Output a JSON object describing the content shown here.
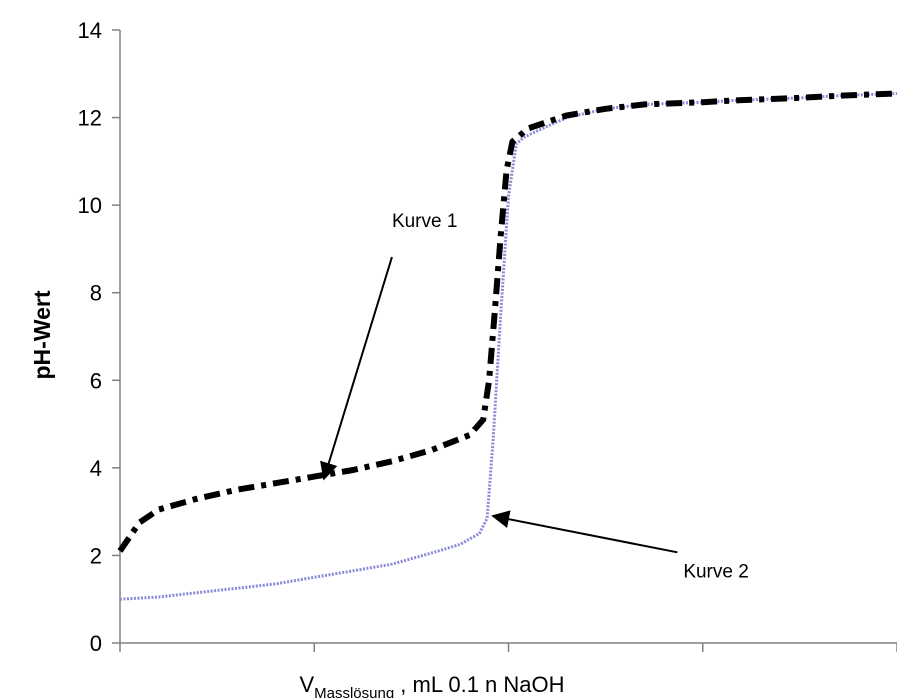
{
  "chart_data": {
    "type": "line",
    "title": "",
    "ylabel": "pH-Wert",
    "xlabel": {
      "main": "V",
      "subscript": "Masslösung",
      "rest": " , mL 0.1 n NaOH"
    },
    "xlim": [
      0,
      4
    ],
    "ylim": [
      0,
      14
    ],
    "y_ticks": [
      "0",
      "2",
      "4",
      "6",
      "8",
      "10",
      "12",
      "14"
    ],
    "x_ticks": [
      0,
      1,
      2,
      3,
      4
    ],
    "x_tick_labels_shown": false,
    "grid": false,
    "colors": {
      "kurve1": "#000000",
      "kurve2": "#8a8ad8",
      "axis": "#808080"
    },
    "series": [
      {
        "name": "Kurve 1",
        "x": [
          0,
          0.1,
          0.2,
          0.4,
          0.6,
          0.8,
          1.0,
          1.2,
          1.4,
          1.6,
          1.8,
          1.87,
          1.9,
          1.93,
          1.96,
          1.99,
          2.02,
          2.06,
          2.1,
          2.3,
          2.5,
          2.7,
          3.0,
          3.2,
          3.5,
          3.7,
          4.0
        ],
        "y": [
          2.1,
          2.75,
          3.05,
          3.3,
          3.5,
          3.65,
          3.8,
          3.95,
          4.15,
          4.4,
          4.75,
          5.1,
          6.0,
          7.6,
          9.3,
          10.8,
          11.45,
          11.6,
          11.75,
          12.05,
          12.2,
          12.3,
          12.35,
          12.4,
          12.45,
          12.5,
          12.55
        ]
      },
      {
        "name": "Kurve 2",
        "x": [
          0,
          0.2,
          0.4,
          0.6,
          0.8,
          1.0,
          1.2,
          1.4,
          1.6,
          1.75,
          1.85,
          1.89,
          1.92,
          1.96,
          2.0,
          2.04,
          2.08,
          2.15,
          2.3,
          2.5,
          2.7,
          3.0,
          3.2,
          3.5,
          3.7,
          4.0
        ],
        "y": [
          1.0,
          1.05,
          1.15,
          1.25,
          1.35,
          1.5,
          1.65,
          1.8,
          2.05,
          2.25,
          2.5,
          2.85,
          4.6,
          7.5,
          10.2,
          11.4,
          11.55,
          11.7,
          12.0,
          12.2,
          12.3,
          12.35,
          12.4,
          12.45,
          12.5,
          12.55
        ]
      }
    ],
    "annotations": [
      {
        "text": "Kurve 1",
        "target_series": "Kurve 1",
        "target": [
          1.05,
          3.75
        ],
        "label_anchor": [
          1.4,
          9.5
        ]
      },
      {
        "text": "Kurve 2",
        "target_series": "Kurve 2",
        "target": [
          1.92,
          2.9
        ],
        "label_anchor": [
          2.9,
          1.5
        ]
      }
    ]
  }
}
